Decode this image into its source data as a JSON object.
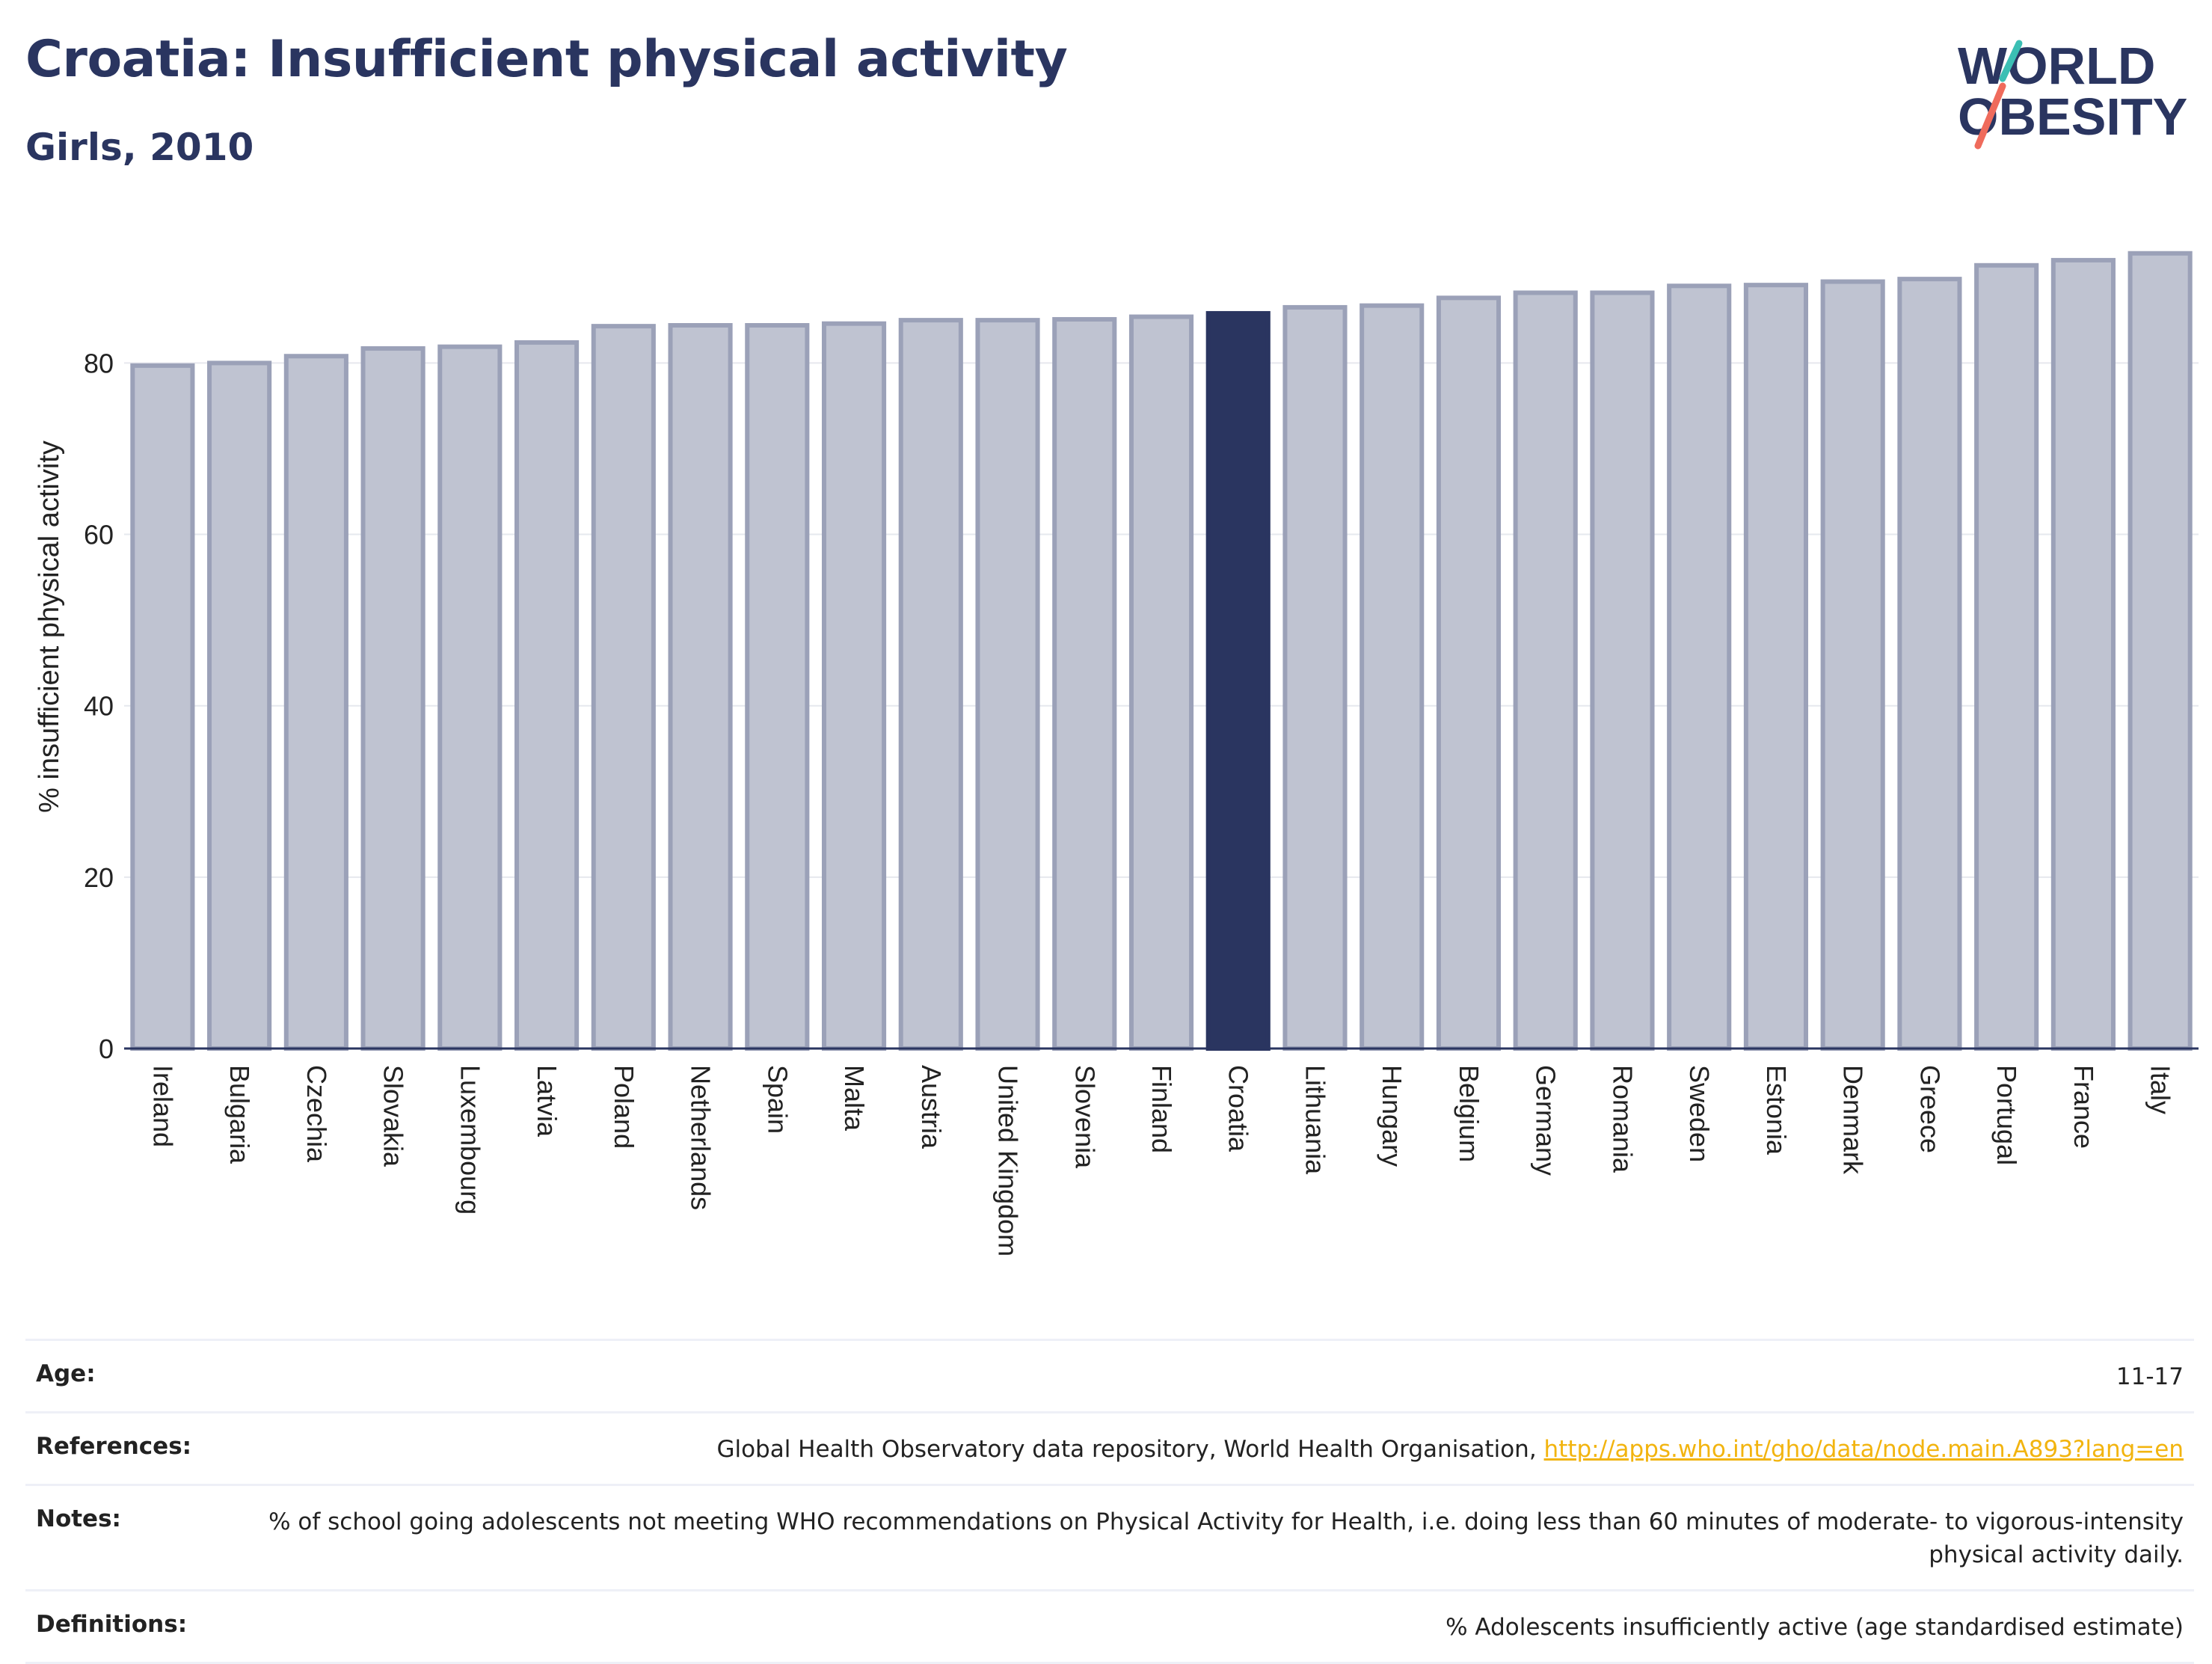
{
  "header": {
    "title": "Croatia: Insufficient physical activity",
    "subtitle": "Girls, 2010"
  },
  "logo": {
    "line1": "WORLD",
    "line2": "OBESITY"
  },
  "colors": {
    "bar": "#bfc3d1",
    "bar_edge": "#9ba1b8",
    "highlight": "#2a3560",
    "title": "#2a3560",
    "link": "#f2b40f",
    "logo_teal": "#3bbfb4",
    "logo_coral": "#ef6b5c"
  },
  "chart_data": {
    "type": "bar",
    "ylabel": "% insufficient physical activity",
    "ylim": [
      0,
      94
    ],
    "yticks": [
      0,
      20,
      40,
      60,
      80
    ],
    "grid": true,
    "highlight": "Croatia",
    "categories": [
      "Ireland",
      "Bulgaria",
      "Czechia",
      "Slovakia",
      "Luxembourg",
      "Latvia",
      "Poland",
      "Netherlands",
      "Spain",
      "Malta",
      "Austria",
      "United Kingdom",
      "Slovenia",
      "Finland",
      "Croatia",
      "Lithuania",
      "Hungary",
      "Belgium",
      "Germany",
      "Romania",
      "Sweden",
      "Estonia",
      "Denmark",
      "Greece",
      "Portugal",
      "France",
      "Italy"
    ],
    "values": [
      79.7,
      80.0,
      80.8,
      81.7,
      81.9,
      82.4,
      84.3,
      84.4,
      84.4,
      84.6,
      85.0,
      85.0,
      85.1,
      85.4,
      85.8,
      86.5,
      86.7,
      87.6,
      88.2,
      88.2,
      89.0,
      89.1,
      89.5,
      89.8,
      91.4,
      92.0,
      92.8
    ]
  },
  "info": [
    {
      "key": "Age:",
      "value": "11-17"
    },
    {
      "key": "References:",
      "value": "Global Health Observatory data repository, World Health Organisation, ",
      "link": "http://apps.who.int/gho/data/node.main.A893?lang=en"
    },
    {
      "key": "Notes:",
      "value": "% of school going adolescents not meeting WHO recommendations on Physical Activity for Health, i.e. doing less than 60 minutes of moderate- to vigorous-intensity physical activity daily."
    },
    {
      "key": "Definitions:",
      "value": "% Adolescents insufficiently active (age standardised estimate)"
    }
  ]
}
